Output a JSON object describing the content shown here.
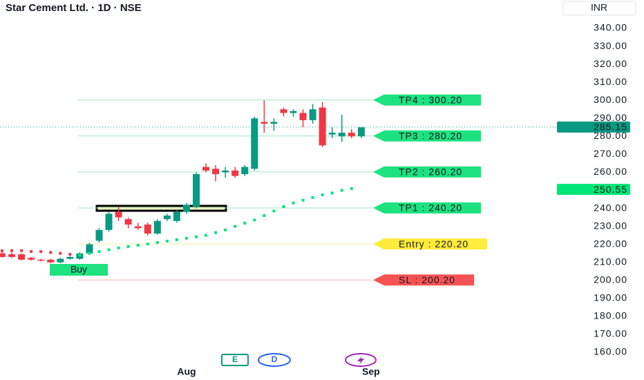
{
  "chart_data": {
    "type": "candlestick",
    "title": "Star Cement Ltd. · 1D · NSE",
    "currency": "INR",
    "ylim": [
      160,
      340
    ],
    "yticks": [
      {
        "value": 160,
        "label": "160.00"
      },
      {
        "value": 170,
        "label": "170.00"
      },
      {
        "value": 180,
        "label": "180.00"
      },
      {
        "value": 190,
        "label": "190.00"
      },
      {
        "value": 200,
        "label": "200.00"
      },
      {
        "value": 210,
        "label": "210.00"
      },
      {
        "value": 220,
        "label": "220.00"
      },
      {
        "value": 230,
        "label": "230.00"
      },
      {
        "value": 240,
        "label": "240.00"
      },
      {
        "value": 250,
        "label": "250.00"
      },
      {
        "value": 260,
        "label": "260.00"
      },
      {
        "value": 270,
        "label": "270.00"
      },
      {
        "value": 280,
        "label": "280.00"
      },
      {
        "value": 290,
        "label": "290.00"
      },
      {
        "value": 300,
        "label": "300.00"
      },
      {
        "value": 310,
        "label": "310.00"
      },
      {
        "value": 320,
        "label": "320.00"
      },
      {
        "value": 330,
        "label": "330.00"
      },
      {
        "value": 340,
        "label": "340.00"
      }
    ],
    "x_labels": [
      {
        "index": 19,
        "label": "Aug"
      },
      {
        "index": 38,
        "label": "Sep"
      }
    ],
    "up_color": "#089981",
    "down_color": "#f23645",
    "open": [
      215,
      214.5,
      214.5,
      212.5,
      211.5,
      211.5,
      210,
      212,
      212,
      215,
      222,
      228,
      238,
      234,
      230,
      231,
      226,
      234,
      233,
      238,
      241,
      263,
      262,
      260,
      261,
      259,
      262,
      288,
      287,
      295,
      293,
      293,
      289,
      296,
      281,
      280,
      282,
      280
    ],
    "high": [
      216,
      215.5,
      215,
      213,
      212,
      212,
      212.5,
      213.5,
      215.5,
      221,
      229,
      238,
      241,
      235,
      232,
      232,
      234,
      237,
      239,
      243,
      260,
      265,
      264,
      263,
      263,
      264,
      291,
      300,
      290,
      296,
      295,
      295,
      298,
      299,
      285,
      292,
      284,
      285
    ],
    "low": [
      212.5,
      212.5,
      211,
      211,
      210.5,
      209.5,
      209.5,
      211.5,
      211.5,
      214.5,
      221,
      227,
      233,
      229,
      228,
      225,
      225.5,
      233,
      232,
      237,
      240,
      260,
      255,
      257,
      257,
      258,
      261,
      282,
      283,
      291,
      291,
      285,
      287,
      274,
      279,
      277,
      279,
      279
    ],
    "close": [
      213,
      213,
      211.5,
      211.5,
      211,
      210,
      212,
      213,
      215,
      220,
      228,
      237,
      235,
      231,
      229,
      226,
      233,
      236,
      238,
      242,
      259,
      261,
      259,
      261,
      258,
      263,
      290,
      287,
      288,
      293,
      294,
      289,
      295,
      275,
      282,
      282,
      280,
      285
    ],
    "sar_down": {
      "color": "#f23645",
      "values": [
        216.5,
        216.5,
        216.5,
        216,
        216,
        215.5,
        215,
        214.5,
        null,
        null,
        null,
        null,
        null,
        null,
        null,
        null,
        null,
        null,
        null,
        null,
        null,
        null,
        null,
        null,
        null,
        null,
        null,
        null,
        null,
        null,
        null,
        null,
        null,
        null,
        null,
        null,
        null,
        null
      ]
    },
    "sar_up": {
      "color": "#00e676",
      "values": [
        null,
        null,
        null,
        null,
        null,
        null,
        null,
        null,
        214,
        215,
        216,
        217,
        218,
        218.8,
        219.5,
        220.2,
        221,
        221.8,
        222.6,
        223.4,
        224.2,
        225,
        226.5,
        228,
        230,
        231.8,
        233.5,
        236,
        238.5,
        241,
        243,
        244.5,
        246,
        247.5,
        248.5,
        250,
        251,
        null
      ]
    },
    "levels": [
      {
        "label": "TP4 : 300.20",
        "value": 300.2,
        "color": "#1ee27f",
        "line": "#9be8c4"
      },
      {
        "label": "TP3 : 280.20",
        "value": 280.2,
        "color": "#1ee27f",
        "line": "#9be8c4"
      },
      {
        "label": "TP2 : 260.20",
        "value": 260.2,
        "color": "#1ee27f",
        "line": "#9be8c4"
      },
      {
        "label": "TP1 : 240.20",
        "value": 240.2,
        "color": "#1ee27f",
        "line": "#9be8c4"
      },
      {
        "label": "Entry : 220.20",
        "value": 220.2,
        "color": "#ffeb3b",
        "line": "#f5f0a0"
      },
      {
        "label": "SL : 200.20",
        "value": 200.2,
        "color": "#f55353",
        "line": "#f5b5b5"
      }
    ],
    "signal": "Buy",
    "last_price": 285.15,
    "sar_price": 250.55,
    "events": [
      "E",
      "D"
    ]
  }
}
